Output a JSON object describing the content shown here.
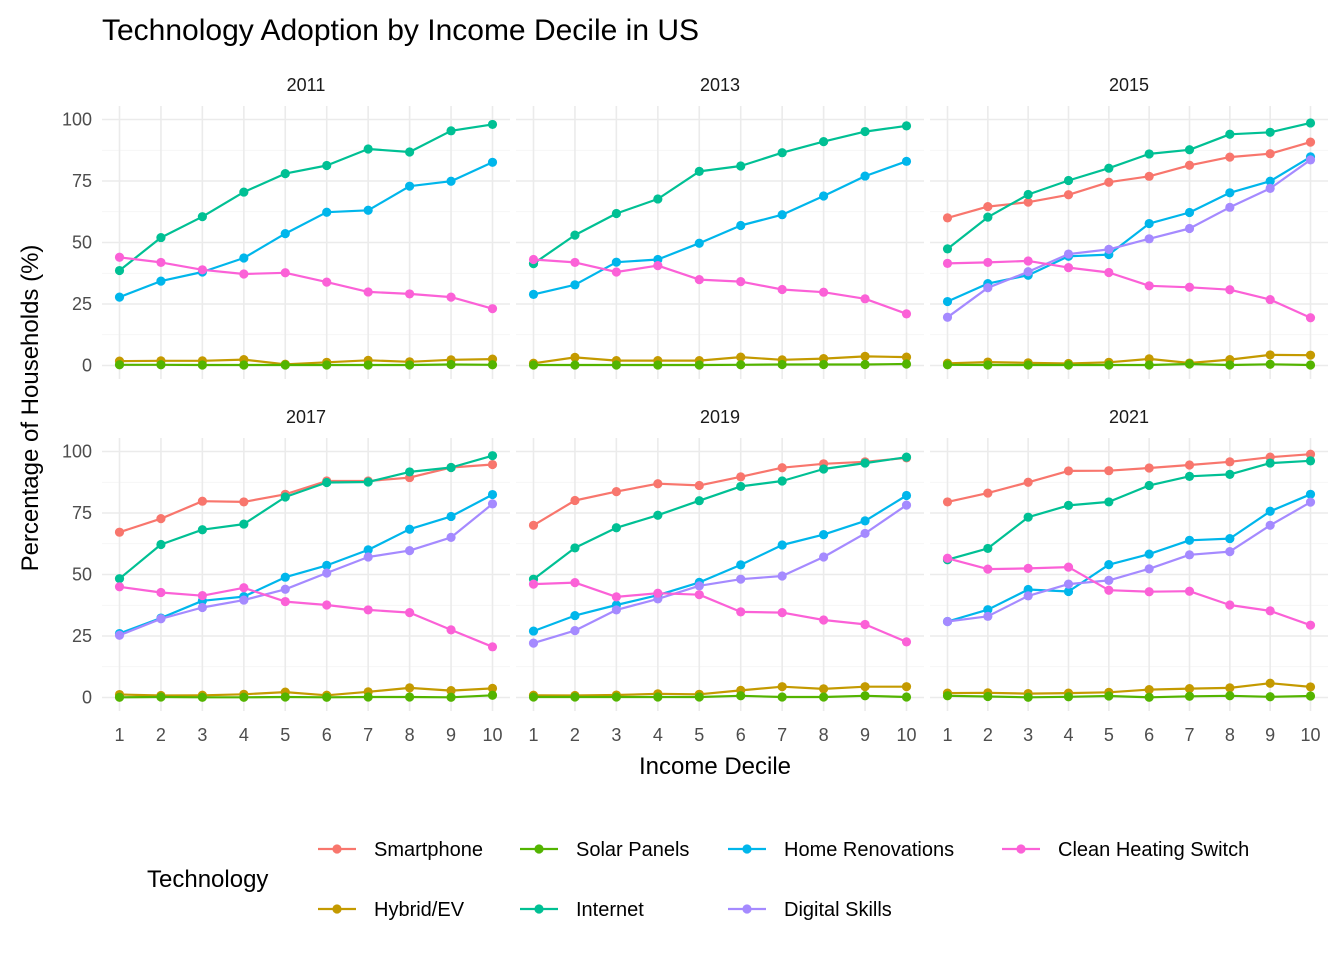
{
  "chart_data": {
    "type": "line",
    "title": "Technology Adoption by Income Decile in US",
    "xlabel": "Income Decile",
    "ylabel": "Percentage of Households (%)",
    "x": [
      1,
      2,
      3,
      4,
      5,
      6,
      7,
      8,
      9,
      10
    ],
    "x_ticks": [
      "1",
      "2",
      "3",
      "4",
      "5",
      "6",
      "7",
      "8",
      "9",
      "10"
    ],
    "ylim": [
      0,
      100
    ],
    "y_ticks": [
      "0",
      "25",
      "50",
      "75",
      "100"
    ],
    "grid": true,
    "legend": {
      "title": "Technology",
      "position": "bottom",
      "entries": [
        {
          "name": "Smartphone",
          "color": "#F8766D"
        },
        {
          "name": "Hybrid/EV",
          "color": "#C49A00"
        },
        {
          "name": "Solar Panels",
          "color": "#53B400"
        },
        {
          "name": "Internet",
          "color": "#00C094"
        },
        {
          "name": "Home Renovations",
          "color": "#00B6EB"
        },
        {
          "name": "Digital Skills",
          "color": "#A58AFF"
        },
        {
          "name": "Clean Heating Switch",
          "color": "#FB61D7"
        }
      ]
    },
    "panels": [
      {
        "year": "2011",
        "series": [
          {
            "name": "Hybrid/EV",
            "values": [
              1.8,
              1.9,
              1.9,
              2.4,
              0.5,
              1.3,
              2.1,
              1.5,
              2.3,
              2.6
            ]
          },
          {
            "name": "Solar Panels",
            "values": [
              0.3,
              0.3,
              0.2,
              0.2,
              0.2,
              0.2,
              0.2,
              0.2,
              0.4,
              0.3
            ]
          },
          {
            "name": "Internet",
            "values": [
              38.6,
              52.0,
              60.5,
              70.5,
              78.0,
              81.3,
              88.0,
              86.8,
              95.4,
              98.0
            ]
          },
          {
            "name": "Home Renovations",
            "values": [
              27.8,
              34.3,
              38.0,
              43.7,
              53.6,
              62.3,
              63.1,
              72.9,
              74.9,
              82.6
            ]
          },
          {
            "name": "Clean Heating Switch",
            "values": [
              44.0,
              41.9,
              38.9,
              37.2,
              37.7,
              33.9,
              29.9,
              29.1,
              27.8,
              23.1
            ]
          }
        ]
      },
      {
        "year": "2013",
        "series": [
          {
            "name": "Hybrid/EV",
            "values": [
              0.9,
              3.3,
              2.0,
              2.0,
              2.0,
              3.4,
              2.3,
              2.8,
              3.7,
              3.4
            ]
          },
          {
            "name": "Solar Panels",
            "values": [
              0.2,
              0.2,
              0.2,
              0.2,
              0.2,
              0.3,
              0.4,
              0.4,
              0.4,
              0.6
            ]
          },
          {
            "name": "Internet",
            "values": [
              41.4,
              53.0,
              61.8,
              67.7,
              78.9,
              81.1,
              86.5,
              91.0,
              95.1,
              97.4
            ]
          },
          {
            "name": "Home Renovations",
            "values": [
              28.9,
              32.8,
              42.0,
              43.1,
              49.7,
              56.9,
              61.3,
              68.9,
              77.0,
              83.0
            ]
          },
          {
            "name": "Clean Heating Switch",
            "values": [
              43.1,
              41.9,
              38.0,
              40.6,
              34.9,
              34.1,
              30.9,
              29.8,
              27.1,
              21.0
            ]
          }
        ]
      },
      {
        "year": "2015",
        "series": [
          {
            "name": "Smartphone",
            "values": [
              60.0,
              64.6,
              66.4,
              69.4,
              74.5,
              76.9,
              81.4,
              84.7,
              86.1,
              90.8
            ]
          },
          {
            "name": "Hybrid/EV",
            "values": [
              0.9,
              1.4,
              1.1,
              0.8,
              1.3,
              2.7,
              1.0,
              2.4,
              4.3,
              4.2
            ]
          },
          {
            "name": "Solar Panels",
            "values": [
              0.3,
              0.2,
              0.2,
              0.2,
              0.2,
              0.2,
              0.6,
              0.2,
              0.5,
              0.2
            ]
          },
          {
            "name": "Internet",
            "values": [
              47.4,
              60.3,
              69.5,
              75.2,
              80.2,
              86.0,
              87.7,
              94.0,
              94.8,
              98.6
            ]
          },
          {
            "name": "Home Renovations",
            "values": [
              26.0,
              33.3,
              36.7,
              44.4,
              45.1,
              57.7,
              62.2,
              70.2,
              74.9,
              84.8
            ]
          },
          {
            "name": "Digital Skills",
            "values": [
              19.6,
              31.6,
              38.1,
              45.3,
              47.2,
              51.5,
              55.7,
              64.3,
              72.0,
              83.6
            ]
          },
          {
            "name": "Clean Heating Switch",
            "values": [
              41.5,
              41.9,
              42.5,
              39.8,
              37.8,
              32.4,
              31.8,
              30.8,
              26.8,
              19.4
            ]
          }
        ]
      },
      {
        "year": "2017",
        "series": [
          {
            "name": "Smartphone",
            "values": [
              67.2,
              72.7,
              79.8,
              79.5,
              82.6,
              88.0,
              88.0,
              89.4,
              93.5,
              94.7
            ]
          },
          {
            "name": "Hybrid/EV",
            "values": [
              1.2,
              0.8,
              0.9,
              1.3,
              2.2,
              0.9,
              2.3,
              3.9,
              2.8,
              3.7
            ]
          },
          {
            "name": "Solar Panels",
            "values": [
              0.1,
              0.2,
              0.1,
              0.1,
              0.2,
              0.1,
              0.2,
              0.2,
              0.1,
              0.9
            ]
          },
          {
            "name": "Internet",
            "values": [
              48.3,
              62.2,
              68.2,
              70.5,
              81.5,
              87.4,
              87.6,
              91.7,
              93.5,
              98.3
            ]
          },
          {
            "name": "Home Renovations",
            "values": [
              26.0,
              32.3,
              39.3,
              41.0,
              48.9,
              53.7,
              60.0,
              68.4,
              73.6,
              82.5
            ]
          },
          {
            "name": "Digital Skills",
            "values": [
              25.3,
              32.0,
              36.6,
              39.6,
              44.0,
              50.6,
              57.1,
              59.7,
              65.1,
              78.7
            ]
          },
          {
            "name": "Clean Heating Switch",
            "values": [
              45.0,
              42.7,
              41.4,
              44.6,
              39.0,
              37.6,
              35.6,
              34.5,
              27.5,
              20.6
            ]
          }
        ]
      },
      {
        "year": "2019",
        "series": [
          {
            "name": "Smartphone",
            "values": [
              70.0,
              80.1,
              83.7,
              86.9,
              86.2,
              89.7,
              93.4,
              95.0,
              95.8,
              97.4
            ]
          },
          {
            "name": "Hybrid/EV",
            "values": [
              0.9,
              0.8,
              1.0,
              1.5,
              1.3,
              2.9,
              4.4,
              3.5,
              4.4,
              4.4
            ]
          },
          {
            "name": "Solar Panels",
            "values": [
              0.2,
              0.2,
              0.2,
              0.2,
              0.2,
              0.7,
              0.2,
              0.2,
              0.7,
              0.2
            ]
          },
          {
            "name": "Internet",
            "values": [
              48.1,
              60.8,
              69.0,
              74.1,
              80.0,
              85.8,
              88.0,
              92.9,
              95.3,
              97.7
            ]
          },
          {
            "name": "Home Renovations",
            "values": [
              27.0,
              33.3,
              37.6,
              41.6,
              46.8,
              53.9,
              62.0,
              66.2,
              71.8,
              82.1
            ]
          },
          {
            "name": "Digital Skills",
            "values": [
              22.1,
              27.2,
              35.6,
              40.1,
              45.4,
              48.1,
              49.4,
              57.1,
              66.7,
              78.2
            ]
          },
          {
            "name": "Clean Heating Switch",
            "values": [
              46.1,
              46.7,
              40.9,
              42.4,
              41.8,
              34.8,
              34.5,
              31.5,
              29.7,
              22.6
            ]
          }
        ]
      },
      {
        "year": "2021",
        "series": [
          {
            "name": "Smartphone",
            "values": [
              79.5,
              83.1,
              87.5,
              92.1,
              92.2,
              93.3,
              94.5,
              95.8,
              97.7,
              98.9
            ]
          },
          {
            "name": "Hybrid/EV",
            "values": [
              1.8,
              1.9,
              1.6,
              1.8,
              2.1,
              3.2,
              3.6,
              3.9,
              5.8,
              4.3
            ]
          },
          {
            "name": "Solar Panels",
            "values": [
              0.7,
              0.4,
              0.1,
              0.3,
              0.6,
              0.1,
              0.5,
              0.7,
              0.3,
              0.6
            ]
          },
          {
            "name": "Internet",
            "values": [
              56.0,
              60.6,
              73.3,
              78.1,
              79.5,
              86.2,
              89.9,
              90.7,
              95.3,
              96.2
            ]
          },
          {
            "name": "Home Renovations",
            "values": [
              30.9,
              35.7,
              43.9,
              43.1,
              54.0,
              58.3,
              63.9,
              64.6,
              75.7,
              82.6
            ]
          },
          {
            "name": "Digital Skills",
            "values": [
              30.9,
              33.0,
              41.3,
              46.1,
              47.6,
              52.3,
              58.0,
              59.3,
              70.0,
              79.4
            ]
          },
          {
            "name": "Clean Heating Switch",
            "values": [
              56.6,
              52.2,
              52.5,
              53.0,
              43.6,
              43.0,
              43.2,
              37.6,
              35.2,
              29.4
            ]
          }
        ]
      }
    ]
  }
}
